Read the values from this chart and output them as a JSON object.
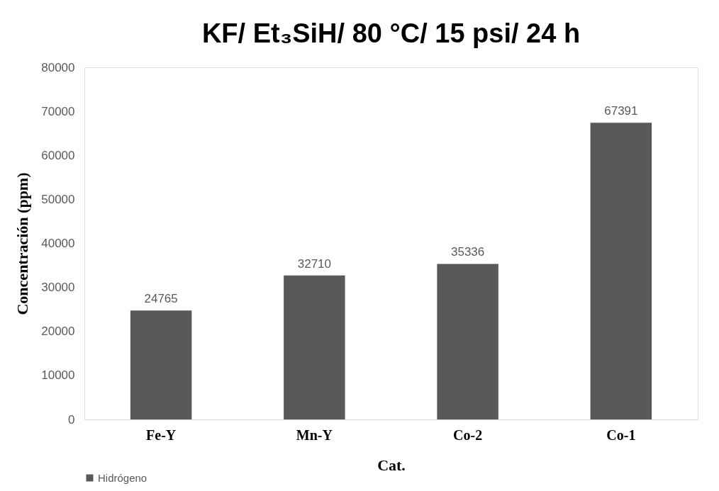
{
  "chart_data": {
    "type": "bar",
    "title": "KF/ Et₃SiH/ 80 °C/ 15 psi/ 24 h",
    "xlabel": "Cat.",
    "ylabel": "Concentración (ppm)",
    "categories": [
      "Fe-Y",
      "Mn-Y",
      "Co-2",
      "Co-1"
    ],
    "series": [
      {
        "name": "Hidrógeno",
        "color": "#595959",
        "values": [
          24765,
          32710,
          35336,
          67391
        ]
      }
    ],
    "ylim": [
      0,
      80000
    ],
    "yticks": [
      0,
      10000,
      20000,
      30000,
      40000,
      50000,
      60000,
      70000,
      80000
    ],
    "grid": false,
    "legend": "bottom",
    "data_labels": true
  }
}
